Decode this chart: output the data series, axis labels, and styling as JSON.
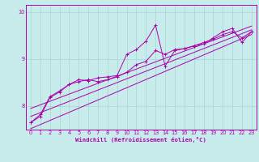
{
  "xlabel": "Windchill (Refroidissement éolien,°C)",
  "bg_color": "#c8ecec",
  "grid_color": "#a8d4d4",
  "line_color": "#aa00aa",
  "xlim": [
    -0.5,
    23.5
  ],
  "ylim": [
    7.5,
    10.15
  ],
  "yticks": [
    8,
    9,
    10
  ],
  "xticks": [
    0,
    1,
    2,
    3,
    4,
    5,
    6,
    7,
    8,
    9,
    10,
    11,
    12,
    13,
    14,
    15,
    16,
    17,
    18,
    19,
    20,
    21,
    22,
    23
  ],
  "x_data": [
    0,
    1,
    2,
    3,
    4,
    5,
    6,
    7,
    8,
    9,
    10,
    11,
    12,
    13,
    14,
    15,
    16,
    17,
    18,
    19,
    20,
    21,
    22,
    23
  ],
  "y_line1": [
    7.65,
    7.78,
    8.18,
    8.3,
    8.46,
    8.56,
    8.54,
    8.6,
    8.62,
    8.65,
    9.1,
    9.2,
    9.38,
    9.72,
    8.85,
    9.18,
    9.22,
    9.28,
    9.32,
    9.45,
    9.58,
    9.65,
    9.35,
    9.58
  ],
  "y_line2": [
    7.65,
    7.82,
    8.2,
    8.32,
    8.46,
    8.52,
    8.56,
    8.52,
    8.56,
    8.62,
    8.72,
    8.88,
    8.95,
    9.18,
    9.1,
    9.2,
    9.22,
    9.28,
    9.35,
    9.42,
    9.52,
    9.58,
    9.45,
    9.58
  ],
  "trend1": [
    7.52,
    9.52
  ],
  "trend2": [
    7.78,
    9.62
  ],
  "trend3": [
    7.95,
    9.7
  ]
}
